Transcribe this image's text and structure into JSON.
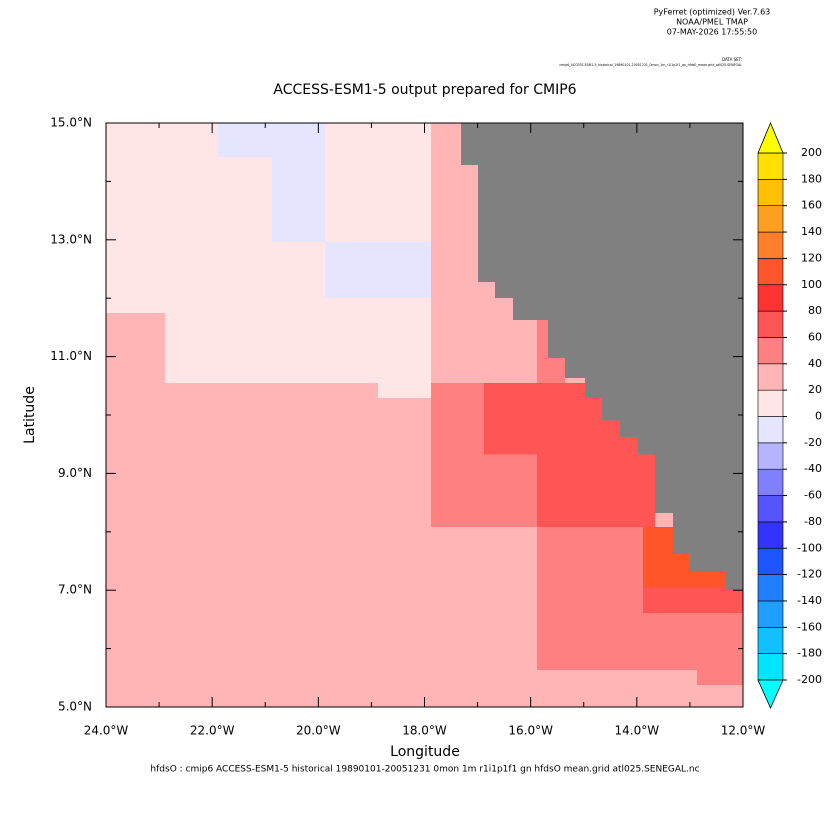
{
  "header": {
    "program": "PyFerret (optimized) Ver.7.63",
    "org": "NOAA/PMEL TMAP",
    "date": "07-MAY-2026 17:55:50",
    "dataset_label": "DATA SET:",
    "dataset": "cmip6_ACCESS-ESM1-5_historical_19890101-20051231_0mon_1m_r1i1p1f1_gn_hfds0_mean.grid_atl025.SENEGAL"
  },
  "chart_data": {
    "type": "heatmap",
    "title": "ACCESS-ESM1-5 output prepared for CMIP6",
    "x_label": "Longitude",
    "y_label": "Latitude",
    "footer": "hfdsO : cmip6 ACCESS-ESM1-5 historical 19890101-20051231 0mon 1m r1i1p1f1 gn hfdsO mean.grid atl025.SENEGAL.nc",
    "xlim": [
      -24,
      -12
    ],
    "ylim": [
      5,
      15
    ],
    "xticks": [
      {
        "value": -24,
        "label": "24.0°W"
      },
      {
        "value": -22,
        "label": "22.0°W"
      },
      {
        "value": -20,
        "label": "20.0°W"
      },
      {
        "value": -18,
        "label": "18.0°W"
      },
      {
        "value": -16,
        "label": "16.0°W"
      },
      {
        "value": -14,
        "label": "14.0°W"
      },
      {
        "value": -12,
        "label": "12.0°W"
      }
    ],
    "xminorticks": [
      -23,
      -21,
      -19,
      -17,
      -15,
      -13
    ],
    "yticks": [
      {
        "value": 5,
        "label": "5.0°N"
      },
      {
        "value": 7,
        "label": "7.0°N"
      },
      {
        "value": 9,
        "label": "9.0°N"
      },
      {
        "value": 11,
        "label": "11.0°N"
      },
      {
        "value": 13,
        "label": "13.0°N"
      },
      {
        "value": 15,
        "label": "15.0°N"
      }
    ],
    "yminorticks": [
      6,
      8,
      10,
      12,
      14
    ],
    "levels": [
      -200,
      -180,
      -160,
      -140,
      -120,
      -100,
      -80,
      -60,
      -40,
      -20,
      0,
      20,
      40,
      60,
      80,
      100,
      120,
      140,
      160,
      180,
      200
    ],
    "colors": [
      "#00e5ff",
      "#11c0ff",
      "#1f9fff",
      "#1f7fff",
      "#1f55ff",
      "#3333ff",
      "#5555ff",
      "#8080ff",
      "#b5b5ff",
      "#e5e5ff",
      "#ffe5e5",
      "#ffb5b5",
      "#ff8080",
      "#ff5555",
      "#ff3333",
      "#ff5528",
      "#ff7f2a",
      "#ff9f1f",
      "#ffc000",
      "#ffe000"
    ],
    "under_color": "#00ffff",
    "over_color": "#ffff00",
    "land_color": "#808080",
    "cells": [
      {
        "lon": [
          -24,
          -12
        ],
        "lat": [
          5,
          15
        ],
        "value": 30
      },
      {
        "lon": [
          -24,
          -17.88
        ],
        "lat": [
          11.75,
          15
        ],
        "value": 10
      },
      {
        "lon": [
          -22.89,
          -17.88
        ],
        "lat": [
          10.55,
          11.75
        ],
        "value": 10
      },
      {
        "lon": [
          -18.88,
          -17.88
        ],
        "lat": [
          10.29,
          10.55
        ],
        "value": 10
      },
      {
        "lon": [
          -21.89,
          -19.87
        ],
        "lat": [
          14.42,
          15
        ],
        "value": -10
      },
      {
        "lon": [
          -20.87,
          -19.87
        ],
        "lat": [
          12.96,
          14.42
        ],
        "value": -10
      },
      {
        "lon": [
          -19.87,
          -17.88
        ],
        "lat": [
          12.0,
          12.96
        ],
        "value": -10
      },
      {
        "lon": [
          -17.88,
          -15.88
        ],
        "lat": [
          8.08,
          10.55
        ],
        "value": 50
      },
      {
        "lon": [
          -15.88,
          -12
        ],
        "lat": [
          5.63,
          8.08
        ],
        "value": 50
      },
      {
        "lon": [
          -15.88,
          -15.35
        ],
        "lat": [
          10.55,
          11.63
        ],
        "value": 50
      },
      {
        "lon": [
          -12.87,
          -12
        ],
        "lat": [
          5.38,
          5.63
        ],
        "value": 50
      },
      {
        "lon": [
          -16.88,
          -15.88
        ],
        "lat": [
          9.32,
          10.55
        ],
        "value": 70
      },
      {
        "lon": [
          -15.88,
          -13.66
        ],
        "lat": [
          8.08,
          10.55
        ],
        "value": 70
      },
      {
        "lon": [
          -13.88,
          -12
        ],
        "lat": [
          6.61,
          7.05
        ],
        "value": 70
      },
      {
        "lon": [
          -13.88,
          -12.87
        ],
        "lat": [
          7.05,
          8.08
        ],
        "value": 110
      },
      {
        "lon": [
          -12.87,
          -12.34
        ],
        "lat": [
          7.05,
          7.31
        ],
        "value": 110
      },
      {
        "lon": [
          -17.31,
          -12
        ],
        "lat": [
          14.28,
          15
        ],
        "value": null
      },
      {
        "lon": [
          -16.99,
          -12
        ],
        "lat": [
          12.28,
          14.28
        ],
        "value": null
      },
      {
        "lon": [
          -16.67,
          -12
        ],
        "lat": [
          12.0,
          12.28
        ],
        "value": null
      },
      {
        "lon": [
          -16.33,
          -12
        ],
        "lat": [
          11.63,
          12.0
        ],
        "value": null
      },
      {
        "lon": [
          -15.67,
          -12
        ],
        "lat": [
          10.98,
          11.63
        ],
        "value": null
      },
      {
        "lon": [
          -15.35,
          -12
        ],
        "lat": [
          10.63,
          10.98
        ],
        "value": null
      },
      {
        "lon": [
          -14.98,
          -12
        ],
        "lat": [
          10.29,
          10.63
        ],
        "value": null
      },
      {
        "lon": [
          -14.66,
          -12
        ],
        "lat": [
          9.91,
          10.29
        ],
        "value": null
      },
      {
        "lon": [
          -14.32,
          -12
        ],
        "lat": [
          9.62,
          9.91
        ],
        "value": null
      },
      {
        "lon": [
          -13.98,
          -12
        ],
        "lat": [
          9.32,
          9.62
        ],
        "value": null
      },
      {
        "lon": [
          -13.66,
          -12
        ],
        "lat": [
          8.32,
          9.32
        ],
        "value": null
      },
      {
        "lon": [
          -13.32,
          -12
        ],
        "lat": [
          7.64,
          8.32
        ],
        "value": null
      },
      {
        "lon": [
          -13.0,
          -12
        ],
        "lat": [
          7.31,
          7.64
        ],
        "value": null
      },
      {
        "lon": [
          -12.34,
          -12
        ],
        "lat": [
          7.0,
          7.31
        ],
        "value": null
      }
    ]
  }
}
